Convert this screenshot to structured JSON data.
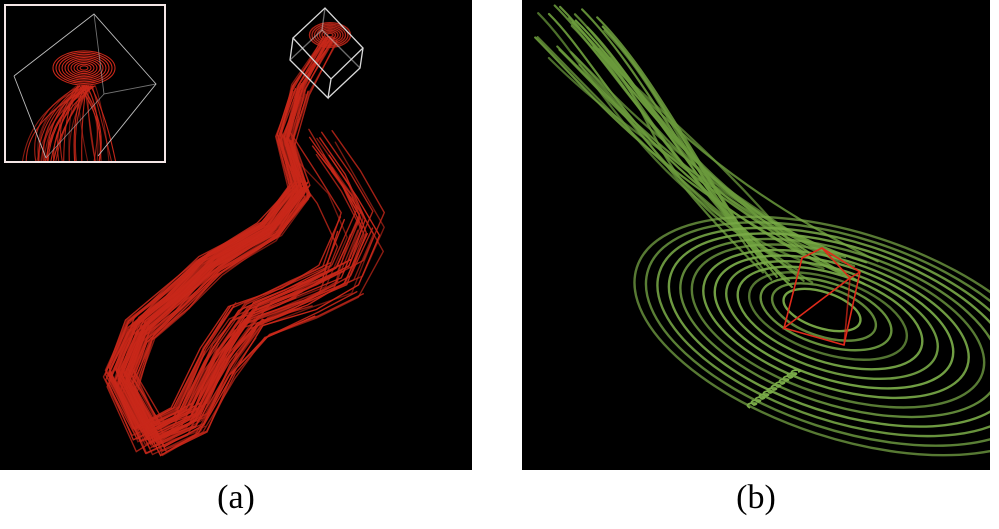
{
  "figure": {
    "panels": [
      {
        "id": "a",
        "caption": "(a)",
        "stroke_color": "#c8281a",
        "box_color": "#d8d8d8",
        "inset_border": "#f4e6e6"
      },
      {
        "id": "b",
        "caption": "(b)",
        "stroke_color": "#6a9a3c",
        "box_color": "#e02a1a"
      }
    ]
  }
}
